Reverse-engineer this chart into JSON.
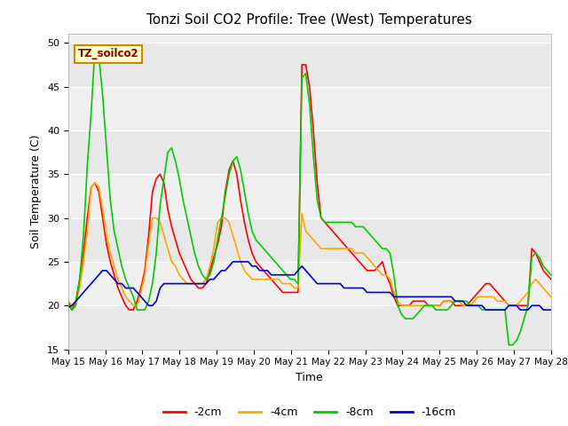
{
  "title": "Tonzi Soil CO2 Profile: Tree (West) Temperatures",
  "xlabel": "Time",
  "ylabel": "Soil Temperature (C)",
  "ylim": [
    15,
    51
  ],
  "yticks": [
    15,
    20,
    25,
    30,
    35,
    40,
    45,
    50
  ],
  "annotation": "TZ_soilco2",
  "line_colors": {
    "-2cm": "#ff0000",
    "-4cm": "#ffa500",
    "-8cm": "#00cc00",
    "-16cm": "#0000cc"
  },
  "xtick_labels": [
    "May 15",
    "May 16",
    "May 17",
    "May 18",
    "May 19",
    "May 20",
    "May 21",
    "May 22",
    "May 23",
    "May 24",
    "May 25",
    "May 26",
    "May 27",
    "May 28"
  ],
  "series": {
    "-2cm": [
      20.2,
      19.5,
      20.5,
      23.0,
      26.0,
      30.0,
      33.5,
      34.0,
      33.0,
      30.0,
      27.0,
      25.0,
      23.5,
      22.0,
      21.0,
      20.0,
      19.5,
      19.5,
      20.5,
      22.0,
      24.0,
      28.0,
      33.0,
      34.5,
      35.0,
      34.0,
      31.0,
      29.0,
      27.5,
      26.0,
      25.0,
      24.0,
      23.0,
      22.5,
      22.0,
      22.0,
      22.5,
      24.0,
      25.5,
      27.0,
      29.0,
      33.0,
      35.5,
      36.5,
      35.0,
      32.0,
      29.5,
      27.5,
      26.0,
      25.0,
      24.5,
      24.0,
      23.5,
      23.0,
      22.5,
      22.0,
      21.5,
      21.5,
      21.5,
      21.5,
      21.5,
      47.5,
      47.5,
      45.0,
      40.0,
      34.0,
      30.0,
      29.5,
      29.0,
      28.5,
      28.0,
      27.5,
      27.0,
      26.5,
      26.0,
      25.5,
      25.0,
      24.5,
      24.0,
      24.0,
      24.0,
      24.5,
      25.0,
      23.5,
      22.5,
      21.0,
      20.0,
      20.0,
      20.0,
      20.0,
      20.5,
      20.5,
      20.5,
      20.5,
      20.0,
      20.0,
      20.0,
      20.0,
      20.5,
      20.5,
      20.5,
      20.0,
      20.0,
      20.0,
      20.0,
      20.5,
      21.0,
      21.5,
      22.0,
      22.5,
      22.5,
      22.0,
      21.5,
      21.0,
      20.5,
      20.0,
      20.0,
      20.0,
      20.0,
      20.0,
      20.0,
      26.5,
      26.0,
      25.0,
      24.0,
      23.5,
      23.0
    ],
    "-4cm": [
      20.5,
      20.0,
      20.5,
      22.0,
      25.0,
      28.5,
      33.5,
      34.0,
      33.5,
      31.0,
      28.0,
      26.0,
      24.5,
      23.0,
      22.0,
      21.0,
      20.5,
      20.0,
      20.0,
      21.5,
      23.5,
      27.0,
      30.0,
      30.0,
      29.5,
      28.0,
      26.5,
      25.0,
      24.5,
      23.5,
      23.0,
      22.5,
      22.5,
      22.5,
      22.5,
      22.5,
      23.0,
      24.5,
      26.5,
      29.5,
      30.0,
      30.0,
      29.5,
      28.0,
      26.5,
      25.0,
      24.0,
      23.5,
      23.0,
      23.0,
      23.0,
      23.0,
      23.0,
      23.0,
      23.0,
      23.0,
      22.5,
      22.5,
      22.5,
      22.0,
      22.0,
      30.5,
      28.5,
      28.0,
      27.5,
      27.0,
      26.5,
      26.5,
      26.5,
      26.5,
      26.5,
      26.5,
      26.5,
      26.5,
      26.5,
      26.0,
      26.0,
      26.0,
      25.5,
      25.0,
      24.5,
      24.0,
      23.5,
      23.5,
      23.0,
      21.5,
      20.5,
      20.0,
      20.0,
      20.0,
      20.0,
      20.0,
      20.0,
      20.0,
      20.0,
      20.0,
      20.0,
      20.0,
      20.5,
      20.5,
      20.5,
      20.5,
      20.5,
      20.0,
      20.0,
      20.0,
      20.5,
      21.0,
      21.0,
      21.0,
      21.0,
      21.0,
      20.5,
      20.5,
      20.5,
      20.0,
      20.0,
      20.0,
      20.5,
      21.0,
      21.5,
      22.5,
      23.0,
      22.5,
      22.0,
      21.5,
      21.0
    ],
    "-8cm": [
      20.5,
      19.5,
      20.0,
      23.0,
      28.0,
      36.0,
      42.0,
      49.5,
      48.5,
      44.0,
      38.0,
      32.0,
      28.5,
      26.5,
      24.5,
      23.0,
      22.0,
      21.0,
      19.5,
      19.5,
      19.5,
      20.5,
      22.5,
      26.0,
      31.5,
      34.5,
      37.5,
      38.0,
      36.5,
      34.5,
      32.0,
      30.0,
      28.0,
      26.0,
      24.5,
      23.5,
      23.0,
      23.5,
      25.0,
      27.5,
      30.0,
      32.5,
      35.0,
      36.5,
      37.0,
      35.5,
      33.0,
      30.5,
      28.5,
      27.5,
      27.0,
      26.5,
      26.0,
      25.5,
      25.0,
      24.5,
      24.0,
      23.5,
      23.0,
      23.0,
      22.5,
      46.0,
      46.5,
      43.0,
      37.0,
      32.0,
      30.0,
      29.5,
      29.5,
      29.5,
      29.5,
      29.5,
      29.5,
      29.5,
      29.5,
      29.0,
      29.0,
      29.0,
      28.5,
      28.0,
      27.5,
      27.0,
      26.5,
      26.5,
      26.0,
      23.5,
      20.0,
      19.0,
      18.5,
      18.5,
      18.5,
      19.0,
      19.5,
      20.0,
      20.0,
      20.0,
      19.5,
      19.5,
      19.5,
      19.5,
      20.0,
      20.5,
      20.5,
      20.5,
      20.5,
      20.0,
      20.0,
      20.0,
      19.5,
      19.5,
      19.5,
      19.5,
      19.5,
      19.5,
      19.5,
      15.5,
      15.5,
      16.0,
      17.0,
      18.5,
      20.0,
      25.5,
      26.0,
      25.5,
      24.5,
      24.0,
      23.5
    ],
    "-16cm": [
      19.8,
      20.0,
      20.5,
      21.0,
      21.5,
      22.0,
      22.5,
      23.0,
      23.5,
      24.0,
      24.0,
      23.5,
      23.0,
      22.5,
      22.5,
      22.0,
      22.0,
      22.0,
      21.5,
      21.0,
      20.5,
      20.0,
      20.0,
      20.5,
      22.0,
      22.5,
      22.5,
      22.5,
      22.5,
      22.5,
      22.5,
      22.5,
      22.5,
      22.5,
      22.5,
      22.5,
      22.5,
      23.0,
      23.0,
      23.5,
      24.0,
      24.0,
      24.5,
      25.0,
      25.0,
      25.0,
      25.0,
      25.0,
      24.5,
      24.5,
      24.0,
      24.0,
      24.0,
      23.5,
      23.5,
      23.5,
      23.5,
      23.5,
      23.5,
      23.5,
      24.0,
      24.5,
      24.0,
      23.5,
      23.0,
      22.5,
      22.5,
      22.5,
      22.5,
      22.5,
      22.5,
      22.5,
      22.0,
      22.0,
      22.0,
      22.0,
      22.0,
      22.0,
      21.5,
      21.5,
      21.5,
      21.5,
      21.5,
      21.5,
      21.5,
      21.0,
      21.0,
      21.0,
      21.0,
      21.0,
      21.0,
      21.0,
      21.0,
      21.0,
      21.0,
      21.0,
      21.0,
      21.0,
      21.0,
      21.0,
      21.0,
      20.5,
      20.5,
      20.5,
      20.0,
      20.0,
      20.0,
      20.0,
      20.0,
      19.5,
      19.5,
      19.5,
      19.5,
      19.5,
      19.5,
      20.0,
      20.0,
      20.0,
      19.5,
      19.5,
      19.5,
      20.0,
      20.0,
      20.0,
      19.5,
      19.5,
      19.5
    ]
  }
}
